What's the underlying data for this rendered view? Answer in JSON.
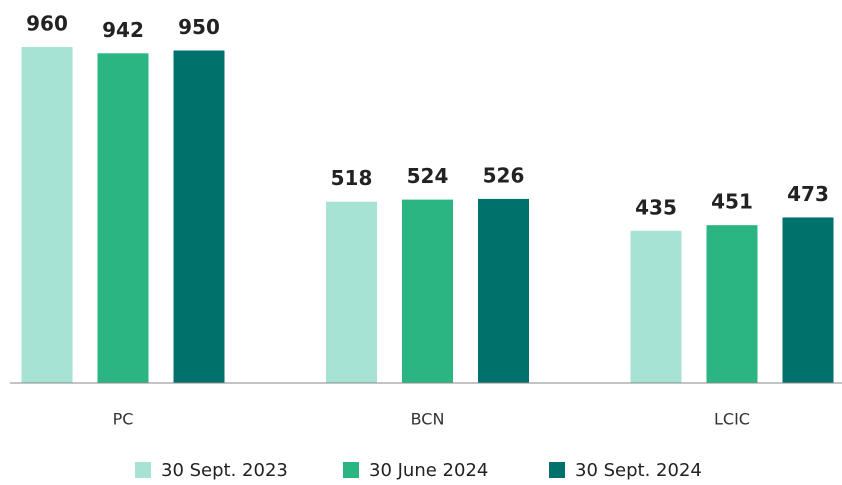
{
  "chart_data": {
    "type": "bar",
    "categories": [
      "PC",
      "BCN",
      "LCIC"
    ],
    "series": [
      {
        "name": "30 Sept. 2023",
        "color": "#a6e3d5",
        "values": [
          960,
          518,
          435
        ]
      },
      {
        "name": "30 June 2024",
        "color": "#2ab582",
        "values": [
          942,
          524,
          451
        ]
      },
      {
        "name": "30 Sept. 2024",
        "color": "#00716b",
        "values": [
          950,
          526,
          473
        ]
      }
    ]
  }
}
